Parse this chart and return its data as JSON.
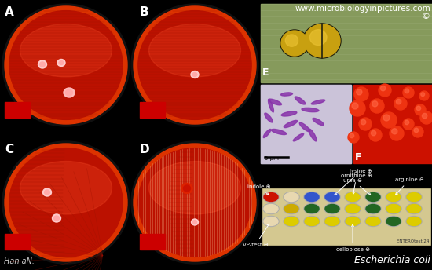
{
  "background_color": "#000000",
  "website_text": "www.microbiologyinpictures.com",
  "website_color": "#ffffff",
  "copyright_text": "©",
  "author_text": "Han aN.",
  "species_text": "Escherichia coli",
  "panel_label_color": "#ffffff",
  "panel_label_fontsize": 11,
  "plate_color": "#cc1100",
  "plate_dark": "#991100",
  "plate_edge": "#111111",
  "streak_color": "#aa0000",
  "colony_color": "#ffaaaa",
  "red_square_color": "#cc0000",
  "enteroctest_text": "ENTEROtest 24",
  "scale_bar_text": "5 μm",
  "gram_bg": "#d8d0e0",
  "rod_color": "#8833aa",
  "scope_bg": "#8a9a6a",
  "scope_bg2": "#6a8060",
  "bacteria_color": "#c8a010",
  "bacteria_highlight": "#e8c030",
  "f_bg": "#cc1100",
  "f_colony": "#ee2200",
  "f_colony_highlight": "#ff5533",
  "strip_bg": "#d8cc9a",
  "well_row1": [
    "#cc1100",
    "#e8d8b0",
    "#3355cc",
    "#3355cc",
    "#ddcc00",
    "#226622",
    "#ddcc00",
    "#ddcc00"
  ],
  "well_row2": [
    "#e8d8b0",
    "#ccaa00",
    "#226622",
    "#226622",
    "#ddcc00",
    "#226622",
    "#ddcc00",
    "#ddcc00"
  ],
  "well_row3": [
    "#e8d8b0",
    "#ddcc00",
    "#ddcc00",
    "#ddcc00",
    "#ddcc00",
    "#ddcc00",
    "#226622",
    "#ddcc00"
  ]
}
